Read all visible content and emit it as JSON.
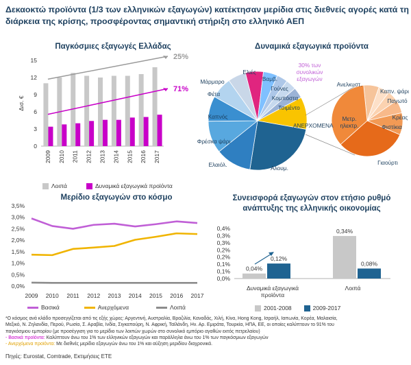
{
  "headline": "Δεκαοκτώ προϊόντα (1/3 των ελληνικών εξαγωγών) κατέκτησαν μερίδια στις διεθνείς αγορές κατά τη διάρκεια της κρίσης, προσφέροντας σημαντική στήριξη στο ελληνικό ΑΕΠ",
  "colors": {
    "grey": "#c8c8c8",
    "magenta": "#c800c8",
    "purple": "#c05fd6",
    "gold": "#f0b400",
    "navy": "#1f6391",
    "dark_grey": "#8c8c8c"
  },
  "chart_data": [
    {
      "id": "exports",
      "type": "bar",
      "title": "Παγκόσμιες εξαγωγές Ελλάδας",
      "ylabel": "Δισ. €",
      "ylim": [
        0,
        15
      ],
      "yticks": [
        0,
        3,
        6,
        9,
        12,
        15
      ],
      "categories": [
        "2009",
        "2010",
        "2011",
        "2012",
        "2013",
        "2014",
        "2015",
        "2016",
        "2017"
      ],
      "series": [
        {
          "name": "Λοιπά",
          "values": [
            11.0,
            12.0,
            12.8,
            12.3,
            12.0,
            12.3,
            12.3,
            12.6,
            13.8
          ]
        },
        {
          "name": "Δυναμικά εξαγωγικά προϊόντα",
          "values": [
            3.4,
            3.8,
            4.0,
            4.4,
            4.6,
            4.6,
            5.0,
            5.1,
            5.5
          ]
        }
      ],
      "annotations": [
        "25%",
        "71%"
      ]
    },
    {
      "id": "dynamic_products",
      "type": "pie",
      "title": "Δυναμικά εξαγωγικά προϊόντα",
      "annotation": "30% των συνολικών εξαγωγών",
      "slices": [
        {
          "label": "Ελιές",
          "value": 5
        },
        {
          "label": "Βαμβ.",
          "value": 4
        },
        {
          "label": "Γούνες",
          "value": 3
        },
        {
          "label": "Κομπόστα",
          "value": 3
        },
        {
          "label": "Τσιμέντο",
          "value": 3
        },
        {
          "label": "ΑΝΕΡΧΟΜΕΝΑ",
          "value": 9
        },
        {
          "label": "Αλουμ.",
          "value": 21
        },
        {
          "label": "Ελαιόλ.",
          "value": 10
        },
        {
          "label": "Φρέσκα ψάρι",
          "value": 9
        },
        {
          "label": "Καπνός",
          "value": 7
        },
        {
          "label": "Φέτα",
          "value": 6
        },
        {
          "label": "Μάρμαρο",
          "value": 5
        }
      ],
      "sub_slices": [
        {
          "label": "Ανελκυστ.",
          "value": 7
        },
        {
          "label": "Καπν. ψάρι",
          "value": 5
        },
        {
          "label": "Παγωτό",
          "value": 5
        },
        {
          "label": "Κρέας",
          "value": 6
        },
        {
          "label": "Φιστίκια",
          "value": 10
        },
        {
          "label": "Γιαούρτι",
          "value": 32
        },
        {
          "label": "Μετρ. ηλεκτρ.",
          "value": 35
        }
      ]
    },
    {
      "id": "market_share",
      "type": "line",
      "title": "Μερίδιο εξαγωγών στο κόσμο",
      "ylim": [
        0,
        3.5
      ],
      "yticks": [
        "0,0%",
        "0,5%",
        "1,0%",
        "1,5%",
        "2,0%",
        "2,5%",
        "3,0%",
        "3,5%"
      ],
      "x": [
        "2009",
        "2010",
        "2011",
        "2012",
        "2013",
        "2014",
        "2015",
        "2016",
        "2017"
      ],
      "series": [
        {
          "name": "Βασικά",
          "values": [
            2.95,
            2.62,
            2.5,
            2.67,
            2.72,
            2.6,
            2.7,
            2.82,
            2.75
          ]
        },
        {
          "name": "Ανερχόμενα",
          "values": [
            1.37,
            1.35,
            1.62,
            1.68,
            1.75,
            2.02,
            2.15,
            2.3,
            2.27
          ]
        },
        {
          "name": "Λοιπά",
          "values": [
            0.15,
            0.14,
            0.14,
            0.14,
            0.14,
            0.14,
            0.14,
            0.14,
            0.14
          ]
        }
      ]
    },
    {
      "id": "gdp_contribution",
      "type": "bar",
      "title": "Συνεισφορά εξαγωγών στον ετήσιο ρυθμό ανάπτυξης της ελληνικής οικονομίας",
      "ylim": [
        0,
        0.4
      ],
      "yticks": [
        "0,0%",
        "0,1%",
        "0,1%",
        "0,2%",
        "0,2%",
        "0,3%",
        "0,3%",
        "0,4%"
      ],
      "categories": [
        "Δυναμικά εξαγωγικά προϊόντα",
        "Λοιπά"
      ],
      "series": [
        {
          "name": "2001-2008",
          "values": [
            0.04,
            0.34
          ],
          "labels": [
            "0,04%",
            "0,34%"
          ]
        },
        {
          "name": "2009-2017",
          "values": [
            0.12,
            0.08
          ],
          "labels": [
            "0,12%",
            "0,08%"
          ]
        }
      ]
    }
  ],
  "footnote": {
    "line1": "*Ο κόσμος ανά κλάδο προσεγγίζεται από τις εξής χώρες: Αργεντινή, Αυστραλία, Βραζιλία, Καναδάς, Χιλή, Κίνα, Hong Kong, Ισραήλ, Ιαπωνία, Κορέα, Μαλαισία,",
    "line2": "Μεξικό, Ν. Ζηλανδία, Περού, Ρωσία, Σ. Αραβία, Ινδία, Σιγκαπούρη, Ν. Αφρική, Ταϊλάνδη, Ην. Αρ. Εμιράτα, Τουρκία, ΗΠΑ, ΕΕ, οι οποίες καλύπτουν το 91% του",
    "line3": "παγκόσμιου εμπορίου (με προσέγγιση για το μερίδιο των λοιπών χωρών στο συνολικό εμπόριο αγαθών εκτός πετρελαίου)",
    "basic_term": "- Βασικά προϊόντα:",
    "basic_text": " Καλύπτουν άνω του 1% των ελληνικών εξαγωγών και παράλληλα άνω του 1% των παγκόσμιων εξαγωγών",
    "emerging_term": "- Ανερχόμενα προϊόντα:",
    "emerging_text": " Με διεθνές μερίδιο εξαγωγών άνω του 1% και αύξηση μεριδίου διαχρονικά."
  },
  "source": "Πηγές: Eurostat, Comtrade, Εκτιμήσεις ΕΤΕ"
}
